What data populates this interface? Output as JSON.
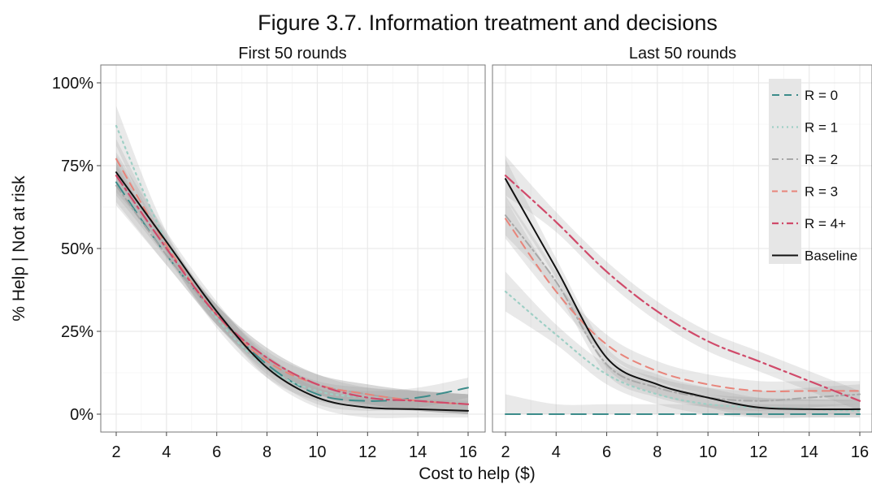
{
  "title": "Figure 3.7. Information treatment and decisions",
  "xlabel": "Cost to help ($)",
  "ylabel": "% Help | Not at risk",
  "colors": {
    "R0": "#3c8c8a",
    "R1": "#9ecfc5",
    "R2": "#a8a8a8",
    "R3": "#e8847a",
    "R4": "#d04a6a",
    "Baseline": "#111111"
  },
  "chart_data": [
    {
      "type": "line",
      "panel": "First 50 rounds",
      "xlim": [
        2,
        16
      ],
      "ylim": [
        0,
        100
      ],
      "xticks": [
        "2",
        "4",
        "6",
        "8",
        "10",
        "12",
        "14",
        "16"
      ],
      "yticks": [
        "0%",
        "25%",
        "50%",
        "75%",
        "100%"
      ],
      "grid": true,
      "x": [
        2,
        4,
        6,
        8,
        10,
        12,
        14,
        16
      ],
      "series": [
        {
          "name": "R = 0",
          "values": [
            70,
            48,
            30,
            15,
            6,
            4,
            5,
            8
          ]
        },
        {
          "name": "R = 1",
          "values": [
            87,
            52,
            29,
            14,
            7,
            5,
            4,
            3
          ]
        },
        {
          "name": "R = 2",
          "values": [
            69,
            48,
            30,
            17,
            9,
            6,
            4,
            3
          ]
        },
        {
          "name": "R = 3",
          "values": [
            77,
            51,
            30,
            16,
            9,
            6,
            4,
            3
          ]
        },
        {
          "name": "R = 4+",
          "values": [
            72,
            50,
            30,
            17,
            9,
            5,
            4,
            3
          ]
        },
        {
          "name": "Baseline",
          "values": [
            73,
            52,
            31,
            14,
            5,
            2,
            1.5,
            1
          ]
        }
      ]
    },
    {
      "type": "line",
      "panel": "Last 50 rounds",
      "xlim": [
        2,
        16
      ],
      "ylim": [
        0,
        100
      ],
      "xticks": [
        "2",
        "4",
        "6",
        "8",
        "10",
        "12",
        "14",
        "16"
      ],
      "grid": true,
      "legend": "top-right",
      "x": [
        2,
        4,
        6,
        8,
        10,
        12,
        14,
        16
      ],
      "series": [
        {
          "name": "R = 0",
          "values": [
            0,
            0,
            0,
            0,
            0,
            0,
            0,
            0
          ]
        },
        {
          "name": "R = 1",
          "values": [
            37,
            24,
            12,
            6,
            3,
            2,
            1.5,
            1
          ]
        },
        {
          "name": "R = 2",
          "values": [
            60,
            40,
            15,
            8,
            5,
            4,
            5,
            6
          ]
        },
        {
          "name": "R = 3",
          "values": [
            59,
            37,
            21,
            13,
            9,
            7,
            7,
            7
          ]
        },
        {
          "name": "R = 4+",
          "values": [
            72,
            58,
            43,
            31,
            22,
            16,
            10,
            4
          ]
        },
        {
          "name": "Baseline",
          "values": [
            71,
            44,
            17,
            9,
            5,
            2,
            1.5,
            1.5
          ]
        }
      ]
    }
  ]
}
